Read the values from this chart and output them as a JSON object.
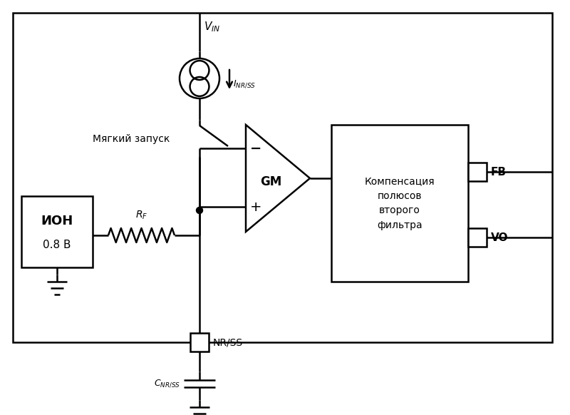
{
  "bg": "#ffffff",
  "lc": "#000000",
  "lw": 1.8,
  "fig_w": 8.0,
  "fig_h": 5.82,
  "dpi": 100,
  "ion_text1": "ИОН",
  "ion_text2": "0.8 В",
  "comp_text": "Компенсация\nполюсов\nвторого\nфильтра",
  "fb_text": "FB",
  "vo_text": "VO",
  "vin_text": "$V_{IN}$",
  "inrss_text": "$I_{NR/SS}$",
  "rf_text": "$R_F$",
  "nrss_text": "NR/SS",
  "cnrss_text": "$C_{NR/SS}$",
  "soft_text": "Мягкий запуск",
  "gm_text": "GM",
  "minus_text": "−",
  "plus_text": "+"
}
